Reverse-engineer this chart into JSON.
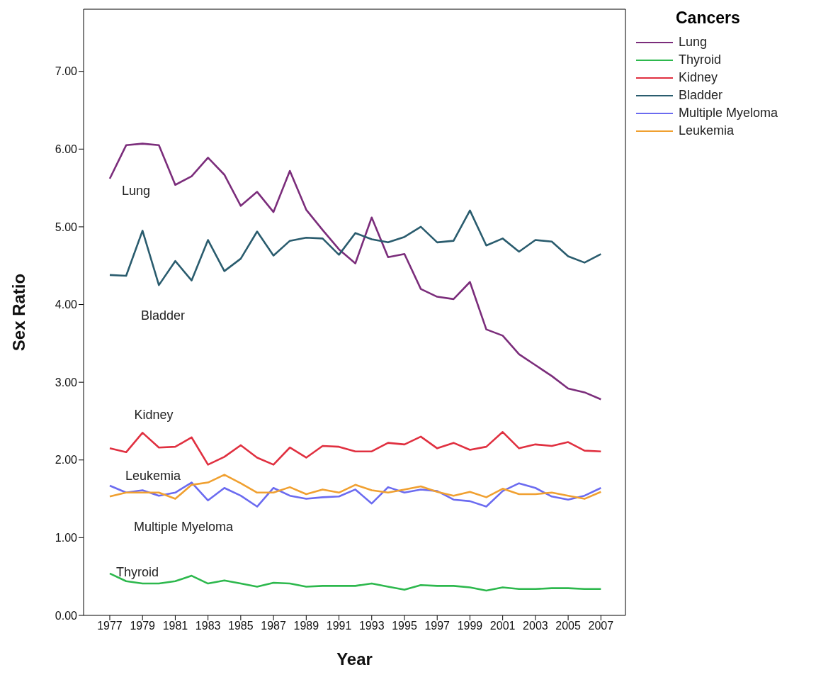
{
  "chart_data": {
    "type": "line",
    "xlabel": "Year",
    "ylabel": "Sex Ratio",
    "legend_title": "Cancers",
    "legend": "top right",
    "marker": "none",
    "line_style": "solid",
    "x": [
      1977,
      1978,
      1979,
      1980,
      1981,
      1982,
      1983,
      1984,
      1985,
      1986,
      1987,
      1988,
      1989,
      1990,
      1991,
      1992,
      1993,
      1994,
      1995,
      1996,
      1997,
      1998,
      1999,
      2000,
      2001,
      2002,
      2003,
      2004,
      2005,
      2006,
      2007
    ],
    "xlim": [
      1975.4,
      2008.5
    ],
    "xticks": [
      1977,
      1979,
      1981,
      1983,
      1985,
      1987,
      1989,
      1991,
      1993,
      1995,
      1997,
      1999,
      2001,
      2003,
      2005,
      2007
    ],
    "ylim": [
      0,
      7.8
    ],
    "yticks": [
      {
        "value": 0,
        "label": "0.00"
      },
      {
        "value": 1,
        "label": "1.00"
      },
      {
        "value": 2,
        "label": "2.00"
      },
      {
        "value": 3,
        "label": "3.00"
      },
      {
        "value": 4,
        "label": "4.00"
      },
      {
        "value": 5,
        "label": "5.00"
      },
      {
        "value": 6,
        "label": "6.00"
      },
      {
        "value": 7,
        "label": "7.00"
      }
    ],
    "series": [
      {
        "name": "Lung",
        "color": "#7b2d7b",
        "values": [
          5.62,
          6.05,
          6.07,
          6.05,
          5.54,
          5.65,
          5.89,
          5.67,
          5.27,
          5.45,
          5.19,
          5.72,
          5.22,
          4.96,
          4.71,
          4.53,
          5.12,
          4.61,
          4.65,
          4.2,
          4.1,
          4.07,
          4.29,
          3.68,
          3.6,
          3.36,
          3.22,
          3.08,
          2.92,
          2.87,
          2.78
        ]
      },
      {
        "name": "Thyroid",
        "color": "#2db84d",
        "values": [
          0.54,
          0.44,
          0.41,
          0.41,
          0.44,
          0.51,
          0.41,
          0.45,
          0.41,
          0.37,
          0.42,
          0.41,
          0.37,
          0.38,
          0.38,
          0.38,
          0.41,
          0.37,
          0.33,
          0.39,
          0.38,
          0.38,
          0.36,
          0.32,
          0.36,
          0.34,
          0.34,
          0.35,
          0.35,
          0.34,
          0.34
        ]
      },
      {
        "name": "Kidney",
        "color": "#e03040",
        "values": [
          2.15,
          2.1,
          2.35,
          2.16,
          2.17,
          2.29,
          1.94,
          2.04,
          2.19,
          2.03,
          1.94,
          2.16,
          2.03,
          2.18,
          2.17,
          2.11,
          2.11,
          2.22,
          2.2,
          2.3,
          2.15,
          2.22,
          2.13,
          2.17,
          2.36,
          2.15,
          2.2,
          2.18,
          2.23,
          2.12,
          2.11
        ]
      },
      {
        "name": "Bladder",
        "color": "#2a5c6e",
        "values": [
          4.38,
          4.37,
          4.95,
          4.25,
          4.56,
          4.31,
          4.83,
          4.43,
          4.59,
          4.94,
          4.63,
          4.82,
          4.86,
          4.85,
          4.64,
          4.92,
          4.84,
          4.8,
          4.87,
          5.0,
          4.8,
          4.82,
          5.21,
          4.76,
          4.85,
          4.68,
          4.83,
          4.81,
          4.62,
          4.54,
          4.65
        ]
      },
      {
        "name": "Multiple Myeloma",
        "color": "#6b6bf0",
        "values": [
          1.67,
          1.58,
          1.61,
          1.54,
          1.58,
          1.71,
          1.48,
          1.64,
          1.54,
          1.4,
          1.64,
          1.54,
          1.5,
          1.52,
          1.53,
          1.62,
          1.44,
          1.65,
          1.58,
          1.62,
          1.6,
          1.49,
          1.47,
          1.4,
          1.6,
          1.7,
          1.64,
          1.53,
          1.49,
          1.54,
          1.64
        ]
      },
      {
        "name": "Leukemia",
        "color": "#f0a030",
        "values": [
          1.53,
          1.58,
          1.58,
          1.58,
          1.5,
          1.68,
          1.71,
          1.81,
          1.7,
          1.58,
          1.58,
          1.65,
          1.56,
          1.62,
          1.58,
          1.68,
          1.61,
          1.58,
          1.62,
          1.66,
          1.59,
          1.54,
          1.59,
          1.52,
          1.63,
          1.56,
          1.56,
          1.58,
          1.54,
          1.5,
          1.59
        ]
      }
    ],
    "annotations": [
      "Lung",
      "Bladder",
      "Kidney",
      "Leukemia",
      "Multiple Myeloma",
      "Thyroid"
    ]
  }
}
